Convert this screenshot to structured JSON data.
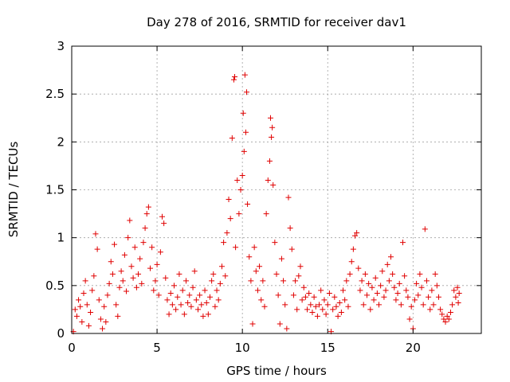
{
  "chart_data": {
    "type": "scatter",
    "title": "Day 278 of 2016, SRMTID for receiver dav1",
    "xlabel": "GPS time / hours",
    "ylabel": "SRMTID / TECUs",
    "xlim": [
      0,
      24
    ],
    "ylim": [
      0,
      3
    ],
    "xticks": [
      0,
      5,
      10,
      15,
      20
    ],
    "yticks": [
      0,
      0.5,
      1,
      1.5,
      2,
      2.5,
      3
    ],
    "xtick_labels": [
      "0",
      "5",
      "10",
      "15",
      "20"
    ],
    "ytick_labels": [
      "0",
      "0.5",
      "1",
      "1.5",
      "2",
      "2.5",
      "3"
    ],
    "grid": true,
    "marker": "plus",
    "color": "#e00000",
    "series": [
      {
        "name": "SRMTID",
        "points": [
          [
            0.1,
            0.02
          ],
          [
            0.2,
            0.25
          ],
          [
            0.3,
            0.18
          ],
          [
            0.4,
            0.35
          ],
          [
            0.5,
            0.28
          ],
          [
            0.6,
            0.12
          ],
          [
            0.7,
            0.42
          ],
          [
            0.8,
            0.55
          ],
          [
            0.9,
            0.3
          ],
          [
            1.0,
            0.08
          ],
          [
            1.1,
            0.22
          ],
          [
            1.2,
            0.45
          ],
          [
            1.3,
            0.6
          ],
          [
            1.4,
            1.04
          ],
          [
            1.5,
            0.88
          ],
          [
            1.6,
            0.35
          ],
          [
            1.7,
            0.15
          ],
          [
            1.8,
            0.05
          ],
          [
            1.9,
            0.28
          ],
          [
            2.0,
            0.12
          ],
          [
            2.1,
            0.4
          ],
          [
            2.2,
            0.52
          ],
          [
            2.3,
            0.75
          ],
          [
            2.4,
            0.62
          ],
          [
            2.5,
            0.93
          ],
          [
            2.6,
            0.3
          ],
          [
            2.7,
            0.18
          ],
          [
            2.8,
            0.48
          ],
          [
            2.9,
            0.65
          ],
          [
            3.0,
            0.55
          ],
          [
            3.1,
            0.82
          ],
          [
            3.2,
            0.44
          ],
          [
            3.3,
            1.0
          ],
          [
            3.4,
            1.18
          ],
          [
            3.5,
            0.7
          ],
          [
            3.6,
            0.58
          ],
          [
            3.7,
            0.9
          ],
          [
            3.8,
            0.48
          ],
          [
            3.9,
            0.62
          ],
          [
            4.0,
            0.78
          ],
          [
            4.1,
            0.52
          ],
          [
            4.2,
            0.95
          ],
          [
            4.3,
            1.1
          ],
          [
            4.4,
            1.25
          ],
          [
            4.5,
            1.32
          ],
          [
            4.6,
            0.68
          ],
          [
            4.7,
            0.9
          ],
          [
            4.8,
            0.45
          ],
          [
            4.9,
            0.55
          ],
          [
            5.0,
            0.72
          ],
          [
            5.1,
            0.4
          ],
          [
            5.2,
            0.85
          ],
          [
            5.3,
            1.22
          ],
          [
            5.4,
            1.15
          ],
          [
            5.5,
            0.58
          ],
          [
            5.6,
            0.35
          ],
          [
            5.7,
            0.2
          ],
          [
            5.8,
            0.42
          ],
          [
            5.9,
            0.3
          ],
          [
            6.0,
            0.5
          ],
          [
            6.1,
            0.25
          ],
          [
            6.2,
            0.38
          ],
          [
            6.3,
            0.62
          ],
          [
            6.4,
            0.3
          ],
          [
            6.5,
            0.45
          ],
          [
            6.6,
            0.2
          ],
          [
            6.7,
            0.55
          ],
          [
            6.8,
            0.32
          ],
          [
            6.9,
            0.4
          ],
          [
            7.0,
            0.28
          ],
          [
            7.1,
            0.48
          ],
          [
            7.2,
            0.65
          ],
          [
            7.3,
            0.35
          ],
          [
            7.4,
            0.25
          ],
          [
            7.5,
            0.4
          ],
          [
            7.6,
            0.3
          ],
          [
            7.7,
            0.18
          ],
          [
            7.8,
            0.45
          ],
          [
            7.9,
            0.32
          ],
          [
            8.0,
            0.2
          ],
          [
            8.1,
            0.38
          ],
          [
            8.2,
            0.55
          ],
          [
            8.3,
            0.62
          ],
          [
            8.4,
            0.28
          ],
          [
            8.5,
            0.45
          ],
          [
            8.6,
            0.35
          ],
          [
            8.7,
            0.52
          ],
          [
            8.8,
            0.7
          ],
          [
            8.9,
            0.95
          ],
          [
            9.0,
            0.6
          ],
          [
            9.1,
            1.05
          ],
          [
            9.2,
            1.4
          ],
          [
            9.3,
            1.2
          ],
          [
            9.4,
            2.04
          ],
          [
            9.5,
            2.65
          ],
          [
            9.55,
            2.68
          ],
          [
            9.6,
            0.9
          ],
          [
            9.7,
            1.6
          ],
          [
            9.8,
            1.25
          ],
          [
            9.9,
            1.5
          ],
          [
            10.0,
            1.65
          ],
          [
            10.05,
            2.3
          ],
          [
            10.1,
            1.9
          ],
          [
            10.15,
            2.7
          ],
          [
            10.2,
            2.1
          ],
          [
            10.25,
            2.52
          ],
          [
            10.3,
            1.35
          ],
          [
            10.4,
            0.8
          ],
          [
            10.5,
            0.55
          ],
          [
            10.6,
            0.1
          ],
          [
            10.7,
            0.9
          ],
          [
            10.8,
            0.65
          ],
          [
            10.9,
            0.45
          ],
          [
            11.0,
            0.7
          ],
          [
            11.1,
            0.35
          ],
          [
            11.2,
            0.55
          ],
          [
            11.3,
            0.28
          ],
          [
            11.4,
            1.25
          ],
          [
            11.5,
            1.6
          ],
          [
            11.6,
            1.8
          ],
          [
            11.65,
            2.25
          ],
          [
            11.7,
            2.05
          ],
          [
            11.75,
            2.15
          ],
          [
            11.8,
            1.55
          ],
          [
            11.9,
            0.95
          ],
          [
            12.0,
            0.62
          ],
          [
            12.1,
            0.4
          ],
          [
            12.2,
            0.1
          ],
          [
            12.3,
            0.78
          ],
          [
            12.4,
            0.55
          ],
          [
            12.5,
            0.3
          ],
          [
            12.6,
            0.05
          ],
          [
            12.7,
            1.42
          ],
          [
            12.8,
            1.1
          ],
          [
            12.9,
            0.88
          ],
          [
            13.0,
            0.4
          ],
          [
            13.1,
            0.55
          ],
          [
            13.2,
            0.25
          ],
          [
            13.3,
            0.6
          ],
          [
            13.4,
            0.7
          ],
          [
            13.5,
            0.35
          ],
          [
            13.6,
            0.48
          ],
          [
            13.7,
            0.38
          ],
          [
            13.8,
            0.25
          ],
          [
            13.9,
            0.42
          ],
          [
            14.0,
            0.3
          ],
          [
            14.1,
            0.22
          ],
          [
            14.2,
            0.38
          ],
          [
            14.3,
            0.28
          ],
          [
            14.4,
            0.18
          ],
          [
            14.5,
            0.3
          ],
          [
            14.6,
            0.45
          ],
          [
            14.7,
            0.25
          ],
          [
            14.8,
            0.35
          ],
          [
            14.9,
            0.2
          ],
          [
            15.0,
            0.3
          ],
          [
            15.1,
            0.42
          ],
          [
            15.2,
            0.02
          ],
          [
            15.3,
            0.25
          ],
          [
            15.4,
            0.38
          ],
          [
            15.5,
            0.28
          ],
          [
            15.6,
            0.18
          ],
          [
            15.7,
            0.32
          ],
          [
            15.8,
            0.22
          ],
          [
            15.9,
            0.45
          ],
          [
            16.0,
            0.35
          ],
          [
            16.1,
            0.55
          ],
          [
            16.2,
            0.28
          ],
          [
            16.3,
            0.62
          ],
          [
            16.4,
            0.75
          ],
          [
            16.5,
            0.88
          ],
          [
            16.6,
            1.02
          ],
          [
            16.7,
            1.05
          ],
          [
            16.8,
            0.68
          ],
          [
            16.9,
            0.45
          ],
          [
            17.0,
            0.55
          ],
          [
            17.1,
            0.3
          ],
          [
            17.2,
            0.62
          ],
          [
            17.3,
            0.4
          ],
          [
            17.4,
            0.52
          ],
          [
            17.5,
            0.25
          ],
          [
            17.6,
            0.48
          ],
          [
            17.7,
            0.35
          ],
          [
            17.8,
            0.58
          ],
          [
            17.9,
            0.42
          ],
          [
            18.0,
            0.3
          ],
          [
            18.1,
            0.5
          ],
          [
            18.2,
            0.65
          ],
          [
            18.3,
            0.38
          ],
          [
            18.4,
            0.45
          ],
          [
            18.5,
            0.72
          ],
          [
            18.6,
            0.55
          ],
          [
            18.7,
            0.8
          ],
          [
            18.8,
            0.62
          ],
          [
            18.9,
            0.48
          ],
          [
            19.0,
            0.35
          ],
          [
            19.1,
            0.42
          ],
          [
            19.2,
            0.52
          ],
          [
            19.3,
            0.3
          ],
          [
            19.4,
            0.95
          ],
          [
            19.5,
            0.6
          ],
          [
            19.6,
            0.45
          ],
          [
            19.7,
            0.38
          ],
          [
            19.8,
            0.15
          ],
          [
            19.9,
            0.28
          ],
          [
            20.0,
            0.05
          ],
          [
            20.1,
            0.35
          ],
          [
            20.2,
            0.52
          ],
          [
            20.3,
            0.4
          ],
          [
            20.4,
            0.62
          ],
          [
            20.5,
            0.48
          ],
          [
            20.6,
            0.3
          ],
          [
            20.7,
            1.09
          ],
          [
            20.8,
            0.55
          ],
          [
            20.9,
            0.38
          ],
          [
            21.0,
            0.25
          ],
          [
            21.1,
            0.45
          ],
          [
            21.2,
            0.3
          ],
          [
            21.3,
            0.62
          ],
          [
            21.4,
            0.5
          ],
          [
            21.5,
            0.38
          ],
          [
            21.6,
            0.25
          ],
          [
            21.7,
            0.2
          ],
          [
            21.8,
            0.15
          ],
          [
            21.9,
            0.12
          ],
          [
            22.0,
            0.18
          ],
          [
            22.1,
            0.15
          ],
          [
            22.2,
            0.22
          ],
          [
            22.3,
            0.3
          ],
          [
            22.4,
            0.45
          ],
          [
            22.5,
            0.38
          ],
          [
            22.6,
            0.48
          ],
          [
            22.65,
            0.32
          ],
          [
            22.7,
            0.42
          ]
        ]
      }
    ]
  }
}
